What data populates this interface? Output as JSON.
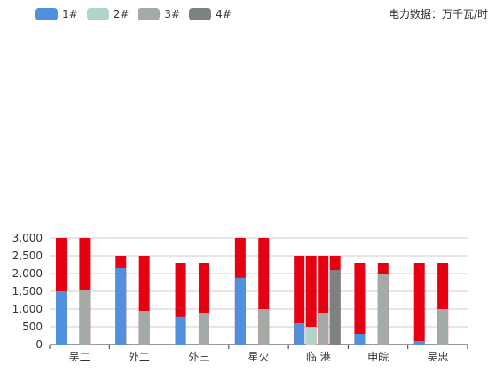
{
  "unit_label": "电力数据：万千瓦/时",
  "colors": {
    "1#": "#5090dd",
    "2#": "#b0d4cc",
    "3#": "#a4aaa6",
    "4#": "#7c8280",
    "capacity": "#e60012"
  },
  "chart_data": {
    "type": "bar",
    "categories": [
      "吴二",
      "外二",
      "外三",
      "星火",
      "临 港",
      "申皖",
      "吴忠"
    ],
    "ylim": [
      0,
      3000
    ],
    "yticks": [
      "0",
      "500",
      "1,000",
      "1,500",
      "2,000",
      "2,500",
      "3,000"
    ],
    "legend": [
      "1#",
      "2#",
      "3#",
      "4#"
    ],
    "legend_placement": "top-left",
    "grid": true,
    "groups": [
      {
        "category": "吴二",
        "units": [
          {
            "unit": "1#",
            "value": 1500,
            "capacity": 3000
          },
          {
            "unit": "3#",
            "value": 1530,
            "capacity": 3000
          }
        ]
      },
      {
        "category": "外二",
        "units": [
          {
            "unit": "1#",
            "value": 2150,
            "capacity": 2500
          },
          {
            "unit": "3#",
            "value": 950,
            "capacity": 2500
          }
        ]
      },
      {
        "category": "外三",
        "units": [
          {
            "unit": "1#",
            "value": 780,
            "capacity": 2300
          },
          {
            "unit": "3#",
            "value": 900,
            "capacity": 2300
          }
        ]
      },
      {
        "category": "星火",
        "units": [
          {
            "unit": "1#",
            "value": 1880,
            "capacity": 3000
          },
          {
            "unit": "3#",
            "value": 1000,
            "capacity": 3000
          }
        ]
      },
      {
        "category": "临 港",
        "units": [
          {
            "unit": "1#",
            "value": 600,
            "capacity": 2500
          },
          {
            "unit": "2#",
            "value": 500,
            "capacity": 2500
          },
          {
            "unit": "3#",
            "value": 900,
            "capacity": 2500
          },
          {
            "unit": "4#",
            "value": 2100,
            "capacity": 2500
          }
        ]
      },
      {
        "category": "申皖",
        "units": [
          {
            "unit": "1#",
            "value": 300,
            "capacity": 2300
          },
          {
            "unit": "3#",
            "value": 2000,
            "capacity": 2300
          }
        ]
      },
      {
        "category": "吴忠",
        "units": [
          {
            "unit": "1#",
            "value": 100,
            "capacity": 2300
          },
          {
            "unit": "3#",
            "value": 1000,
            "capacity": 2300
          }
        ]
      }
    ]
  }
}
